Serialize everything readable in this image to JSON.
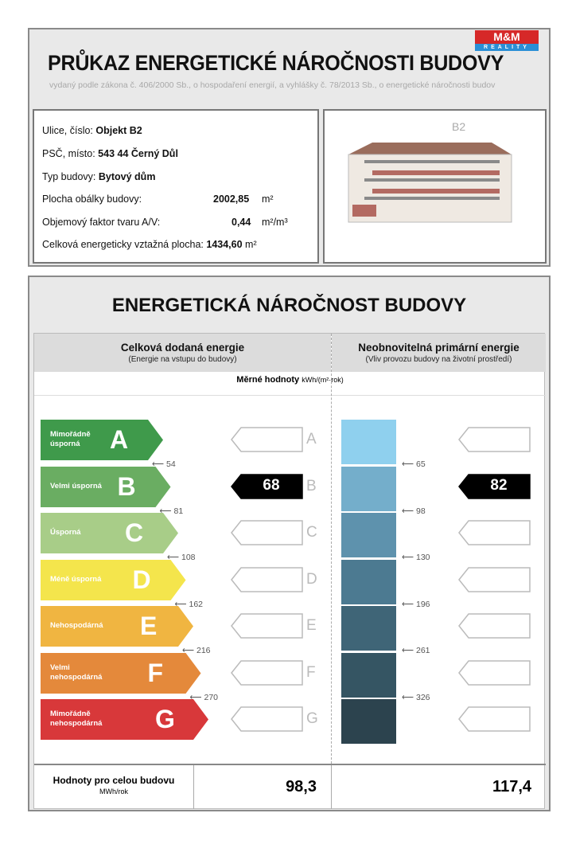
{
  "header": {
    "title": "PRŮKAZ ENERGETICKÉ NÁROČNOSTI BUDOVY",
    "subtitle": "vydaný podle zákona č. 406/2000 Sb., o hospodaření energií, a vyhlášky č. 78/2013 Sb., o energetické náročnosti budov",
    "logo_text": "M&M",
    "logo_sub": "REALITY"
  },
  "info": {
    "street_label": "Ulice, číslo:",
    "street": "Objekt B2",
    "city_label": "PSČ, místo:",
    "city": "543 44 Černý Důl",
    "type_label": "Typ budovy:",
    "type": "Bytový dům",
    "envelope_label": "Plocha obálky budovy:",
    "envelope": "2002,85",
    "envelope_unit": "m²",
    "shape_label": "Objemový faktor tvaru A/V:",
    "shape": "0,44",
    "shape_unit": "m²/m³",
    "area_label": "Celková energeticky vztažná plocha:",
    "area": "1434,60",
    "area_unit": "m²"
  },
  "building_image_label": "B2",
  "rating": {
    "title": "ENERGETICKÁ NÁROČNOST BUDOVY",
    "col1_title": "Celková dodaná energie",
    "col1_sub": "(Energie na vstupu do budovy)",
    "col2_title": "Neobnovitelná primární energie",
    "col2_sub": "(Vliv provozu budovy na životní prostředí)",
    "units_label": "Měrné hodnoty",
    "units": "kWh/(m²·rok)",
    "classes": [
      {
        "letter": "A",
        "label": "Mimořádně úsporná",
        "color": "#3f9a4b"
      },
      {
        "letter": "B",
        "label": "Velmi úsporná",
        "color": "#6aad62"
      },
      {
        "letter": "C",
        "label": "Úsporná",
        "color": "#a8cd88"
      },
      {
        "letter": "D",
        "label": "Méně úsporná",
        "color": "#f4e54c"
      },
      {
        "letter": "E",
        "label": "Nehospodárná",
        "color": "#f0b541"
      },
      {
        "letter": "F",
        "label": "Velmi nehospodárná",
        "color": "#e4893b"
      },
      {
        "letter": "G",
        "label": "Mimořádně nehospodárná",
        "color": "#d8383a"
      }
    ],
    "col1_thresholds": [
      "54",
      "81",
      "108",
      "162",
      "216",
      "270"
    ],
    "col2_thresholds": [
      "65",
      "98",
      "130",
      "196",
      "261",
      "326"
    ],
    "col2_colors": [
      "#8fd0ee",
      "#74aecb",
      "#5e92ad",
      "#4c7a91",
      "#3f6577",
      "#355563",
      "#2c434e"
    ],
    "col1_value": "68",
    "col1_class": "B",
    "col2_value": "82",
    "col2_class": "B",
    "total_label": "Hodnoty pro celou budovu",
    "total_unit": "MWh/rok",
    "total_col1": "98,3",
    "total_col2": "117,4"
  }
}
